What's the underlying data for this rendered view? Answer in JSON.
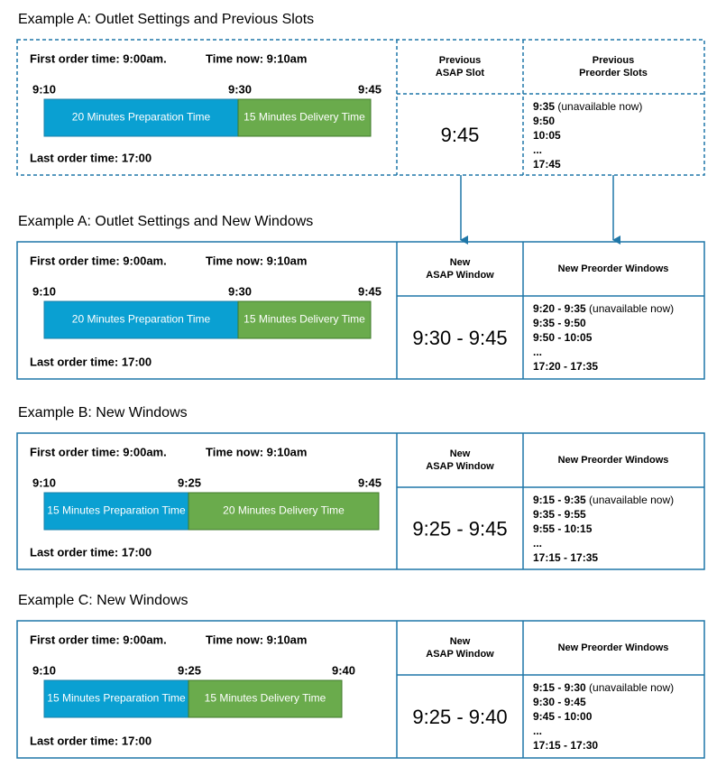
{
  "examples": [
    {
      "title": "Example A: Outlet Settings and Previous Slots",
      "first_order": "First order time: 9:00am.",
      "time_now": "Time now: 9:10am",
      "timeline": [
        "9:10",
        "9:30",
        "9:45"
      ],
      "prep_label": "20 Minutes Preparation Time",
      "delivery_label": "15 Minutes Delivery Time",
      "last_order": "Last order time: 17:00",
      "asap_header": [
        "Previous",
        "ASAP Slot"
      ],
      "asap_value": "9:45",
      "preorder_header": [
        "Previous",
        "Preorder Slots"
      ],
      "preorder": [
        {
          "time": "9:35",
          "note": "(unavailable now)"
        },
        {
          "time": "9:50"
        },
        {
          "time": "10:05"
        },
        {
          "time": "..."
        },
        {
          "time": "17:45"
        }
      ]
    },
    {
      "title": "Example A: Outlet Settings and New Windows",
      "first_order": "First order time: 9:00am.",
      "time_now": "Time now: 9:10am",
      "timeline": [
        "9:10",
        "9:30",
        "9:45"
      ],
      "prep_label": "20 Minutes Preparation Time",
      "delivery_label": "15 Minutes Delivery Time",
      "last_order": "Last order time: 17:00",
      "asap_header": [
        "New",
        "ASAP Window"
      ],
      "asap_value": "9:30 - 9:45",
      "preorder_header": [
        "New Preorder Windows"
      ],
      "preorder": [
        {
          "time": "9:20 - 9:35",
          "note": "(unavailable now)"
        },
        {
          "time": "9:35 - 9:50"
        },
        {
          "time": "9:50 - 10:05"
        },
        {
          "time": "..."
        },
        {
          "time": "17:20 - 17:35"
        }
      ]
    },
    {
      "title": "Example B: New Windows",
      "first_order": "First order time: 9:00am.",
      "time_now": "Time now: 9:10am",
      "timeline": [
        "9:10",
        "9:25",
        "9:45"
      ],
      "prep_label": "15 Minutes Preparation Time",
      "delivery_label": "20 Minutes Delivery Time",
      "last_order": "Last order time: 17:00",
      "asap_header": [
        "New",
        "ASAP Window"
      ],
      "asap_value": "9:25 - 9:45",
      "preorder_header": [
        "New Preorder Windows"
      ],
      "preorder": [
        {
          "time": "9:15 - 9:35",
          "note": "(unavailable now)"
        },
        {
          "time": "9:35 - 9:55"
        },
        {
          "time": "9:55 - 10:15"
        },
        {
          "time": "..."
        },
        {
          "time": "17:15 - 17:35"
        }
      ]
    },
    {
      "title": "Example C: New Windows",
      "first_order": "First order time: 9:00am.",
      "time_now": "Time now: 9:10am",
      "timeline": [
        "9:10",
        "9:25",
        "9:40"
      ],
      "prep_label": "15 Minutes Preparation Time",
      "delivery_label": "15 Minutes Delivery Time",
      "last_order": "Last order time: 17:00",
      "asap_header": [
        "New",
        "ASAP Window"
      ],
      "asap_value": "9:25 - 9:40",
      "preorder_header": [
        "New Preorder Windows"
      ],
      "preorder": [
        {
          "time": "9:15 - 9:30",
          "note": "(unavailable now)"
        },
        {
          "time": "9:30 - 9:45"
        },
        {
          "time": "9:45 - 10:00"
        },
        {
          "time": "..."
        },
        {
          "time": "17:15 - 17:30"
        }
      ]
    }
  ]
}
